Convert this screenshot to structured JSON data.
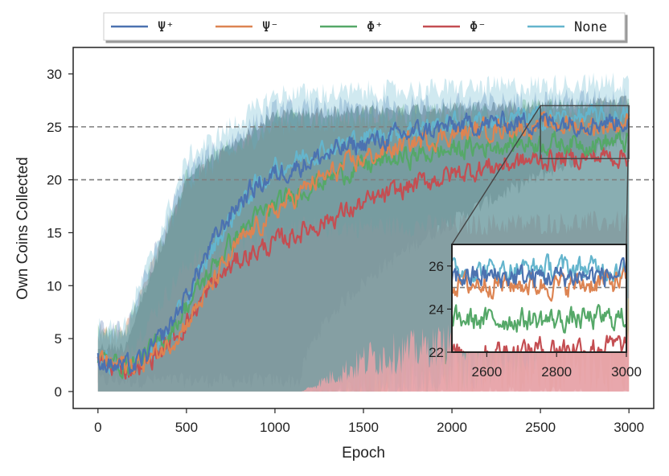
{
  "chart_data": {
    "type": "line",
    "xlabel": "Epoch",
    "ylabel": "Own Coins Collected",
    "xlim": [
      -140,
      3140
    ],
    "ylim": [
      -1.6,
      32.5
    ],
    "xticks": [
      0,
      500,
      1000,
      1500,
      2000,
      2500,
      3000
    ],
    "yticks": [
      0,
      5,
      10,
      15,
      20,
      25,
      30
    ],
    "xtick_labels": [
      "0",
      "500",
      "1000",
      "1500",
      "2000",
      "2500",
      "3000"
    ],
    "ytick_labels": [
      "0",
      "5",
      "10",
      "15",
      "20",
      "25",
      "30"
    ],
    "reference_lines": [
      25,
      20
    ],
    "legend_position": "top-center",
    "series": [
      {
        "name": "Ψ⁺",
        "color": "#4c72b0",
        "x": [
          0,
          100,
          200,
          300,
          400,
          500,
          600,
          700,
          800,
          900,
          1000,
          1200,
          1400,
          1600,
          1800,
          2000,
          2200,
          2400,
          2600,
          2800,
          3000
        ],
        "values": [
          3.0,
          2.4,
          2.3,
          3.8,
          6.0,
          9.0,
          12.5,
          15.5,
          18.0,
          19.5,
          20.5,
          21.8,
          23.0,
          23.8,
          24.5,
          25.0,
          25.3,
          25.5,
          25.5,
          25.5,
          25.6
        ]
      },
      {
        "name": "Ψ⁻",
        "color": "#dd8452",
        "x": [
          0,
          100,
          200,
          300,
          400,
          500,
          600,
          700,
          800,
          900,
          1000,
          1200,
          1400,
          1600,
          1800,
          2000,
          2200,
          2400,
          2600,
          2800,
          3000
        ],
        "values": [
          3.2,
          2.5,
          2.5,
          3.2,
          4.5,
          6.5,
          9.0,
          11.5,
          14.0,
          15.5,
          17.0,
          19.5,
          21.3,
          22.6,
          23.6,
          24.3,
          24.8,
          25.0,
          25.2,
          25.1,
          25.3
        ]
      },
      {
        "name": "Φ⁺",
        "color": "#55a868",
        "x": [
          0,
          100,
          200,
          300,
          400,
          500,
          600,
          700,
          800,
          900,
          1000,
          1200,
          1400,
          1600,
          1800,
          2000,
          2200,
          2400,
          2600,
          2800,
          3000
        ],
        "values": [
          3.0,
          2.6,
          2.6,
          3.9,
          5.5,
          8.0,
          10.5,
          13.0,
          15.0,
          16.5,
          17.5,
          19.5,
          20.8,
          21.7,
          22.3,
          22.8,
          23.2,
          23.5,
          23.5,
          23.5,
          23.6
        ]
      },
      {
        "name": "Φ⁻",
        "color": "#c44e52",
        "x": [
          0,
          100,
          200,
          300,
          400,
          500,
          600,
          700,
          800,
          900,
          1000,
          1200,
          1400,
          1600,
          1800,
          2000,
          2200,
          2400,
          2600,
          2800,
          3000
        ],
        "values": [
          2.8,
          2.2,
          2.2,
          3.1,
          4.5,
          6.5,
          9.0,
          11.0,
          12.5,
          13.3,
          14.0,
          15.5,
          17.0,
          18.3,
          19.6,
          20.5,
          21.2,
          21.7,
          22.0,
          22.2,
          22.3
        ]
      },
      {
        "name": "None",
        "color": "#64b5cd",
        "x": [
          0,
          100,
          200,
          300,
          400,
          500,
          600,
          700,
          800,
          900,
          1000,
          1200,
          1400,
          1600,
          1800,
          2000,
          2200,
          2400,
          2600,
          2800,
          3000
        ],
        "values": [
          3.0,
          2.5,
          2.4,
          3.5,
          5.5,
          8.5,
          12.0,
          15.0,
          17.5,
          19.5,
          21.0,
          22.5,
          23.5,
          24.3,
          24.9,
          25.3,
          25.6,
          25.8,
          25.8,
          25.9,
          25.9
        ]
      }
    ],
    "inset": {
      "xlim": [
        2500,
        3000
      ],
      "ylim": [
        22,
        27
      ],
      "xticks": [
        2600,
        2800,
        3000
      ],
      "yticks": [
        22,
        24,
        26
      ],
      "xtick_labels": [
        "2600",
        "2800",
        "3000"
      ],
      "ytick_labels": [
        "22",
        "24",
        "26"
      ],
      "reference_line": 25
    }
  }
}
